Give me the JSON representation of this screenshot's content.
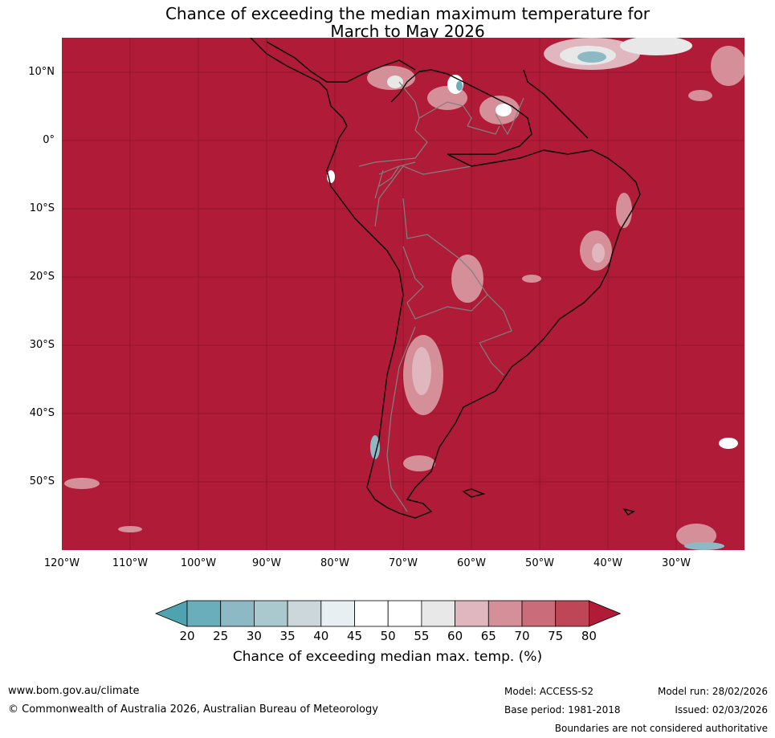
{
  "title": {
    "line1": "Chance of exceeding the median maximum temperature for",
    "line2": "March to May 2026"
  },
  "map": {
    "background_color": "#b01b37",
    "lat_labels": [
      "10°N",
      "0°",
      "10°S",
      "20°S",
      "30°S",
      "40°S",
      "50°S"
    ],
    "lon_labels": [
      "120°W",
      "110°W",
      "100°W",
      "90°W",
      "80°W",
      "70°W",
      "60°W",
      "50°W",
      "40°W",
      "30°W"
    ]
  },
  "colorbar": {
    "ticks": [
      "20",
      "25",
      "30",
      "35",
      "40",
      "45",
      "50",
      "55",
      "60",
      "65",
      "70",
      "75",
      "80"
    ],
    "colors": [
      "#4fa3b0",
      "#6aaebb",
      "#8db9c4",
      "#aac9cf",
      "#ccd7db",
      "#e7eff2",
      "#ffffff",
      "#ffffff",
      "#e8e8e8",
      "#e0b7be",
      "#d48f98",
      "#ca6c79",
      "#bf4657",
      "#b01b37"
    ],
    "label": "Chance of exceeding median max. temp. (%)"
  },
  "footer": {
    "website": "www.bom.gov.au/climate",
    "copyright": "© Commonwealth of Australia 2026, Australian Bureau of Meteorology",
    "model": "Model: ACCESS-S2",
    "base_period": "Base period: 1981-2018",
    "model_run": "Model run: 28/02/2026",
    "issued": "Issued: 02/03/2026",
    "disclaimer": "Boundaries are not considered authoritative"
  }
}
